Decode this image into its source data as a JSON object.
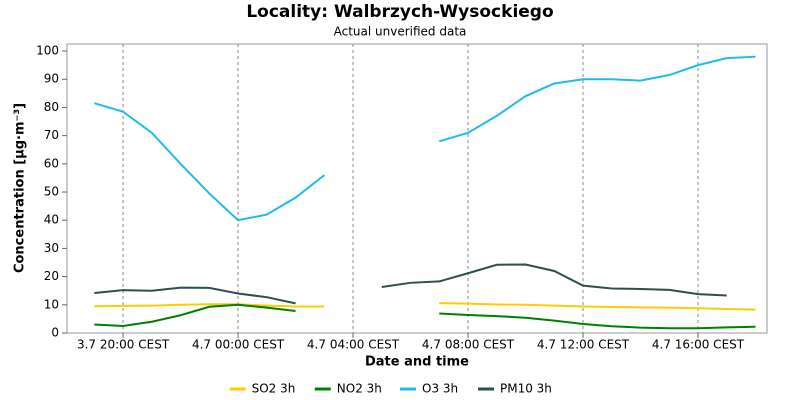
{
  "chart_data": {
    "type": "line",
    "title": "Locality: Walbrzych-Wysockiego",
    "subtitle": "Actual unverified data",
    "x_label": "Date and time",
    "y_label": "Concentration [µg·m⁻³]",
    "x": [
      19,
      20,
      21,
      22,
      23,
      24,
      25,
      26,
      27,
      28,
      29,
      30,
      31,
      32,
      33,
      34,
      35,
      36,
      37,
      38,
      39,
      40,
      41,
      42
    ],
    "xlim": [
      18.05,
      42.4
    ],
    "xticks": [
      {
        "value": 20,
        "label": "3.7 20:00 CEST"
      },
      {
        "value": 24,
        "label": "4.7 00:00 CEST"
      },
      {
        "value": 28,
        "label": "4.7 04:00 CEST"
      },
      {
        "value": 32,
        "label": "4.7 08:00 CEST"
      },
      {
        "value": 36,
        "label": "4.7 12:00 CEST"
      },
      {
        "value": 40,
        "label": "4.7 16:00 CEST"
      }
    ],
    "ylim": [
      0,
      102.5
    ],
    "yticks": [
      0,
      10,
      20,
      30,
      40,
      50,
      60,
      70,
      80,
      90,
      100
    ],
    "xgrid": true,
    "legend": "bottom",
    "series": [
      {
        "name": "SO2 3h",
        "color": "#ffcc00",
        "values": [
          9.5,
          9.6,
          9.7,
          10,
          10.2,
          10.2,
          9.7,
          9.4,
          9.4,
          null,
          null,
          null,
          10.6,
          10.4,
          10.1,
          10,
          9.7,
          9.4,
          9.2,
          9.1,
          9,
          8.8,
          8.5,
          8.3
        ]
      },
      {
        "name": "NO2 3h",
        "color": "#008000",
        "values": [
          3,
          2.5,
          4,
          6.3,
          9.3,
          10,
          9,
          7.8,
          null,
          null,
          null,
          null,
          6.9,
          6.4,
          6,
          5.4,
          4.4,
          3.2,
          2.4,
          1.9,
          1.7,
          1.7,
          2,
          2.2
        ]
      },
      {
        "name": "O3 3h",
        "color": "#1ebbea",
        "values": [
          81.5,
          78.5,
          71,
          60,
          49.5,
          40,
          42,
          48,
          56,
          null,
          null,
          null,
          68,
          71,
          77,
          84,
          88.5,
          90,
          90,
          89.5,
          91.5,
          95,
          97.5,
          98
        ]
      },
      {
        "name": "PM10 3h",
        "color": "#2f4f4f",
        "values": [
          14.2,
          15.2,
          15,
          16.1,
          16,
          14,
          12.7,
          10.5,
          null,
          null,
          16.3,
          17.8,
          18.3,
          21.2,
          24.2,
          24.3,
          22,
          16.8,
          15.8,
          15.6,
          15.3,
          13.8,
          13.3,
          null
        ]
      }
    ]
  }
}
